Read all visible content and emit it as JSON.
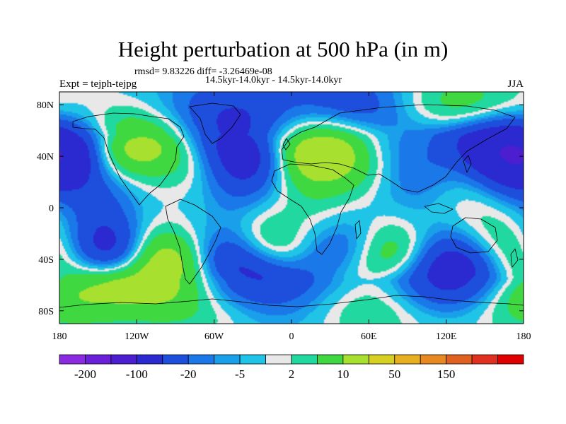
{
  "title": "Height perturbation at 500 hPa (in m)",
  "stats_line": "rmsd= 9.83226 diff= -3.26469e-08",
  "period_line": "14.5kyr-14.0kyr - 14.5kyr-14.0kyr",
  "experiment": "Expt = tejph-tejpg",
  "season": "JJA",
  "x_ticks": [
    {
      "lon": -180,
      "label": "180"
    },
    {
      "lon": -120,
      "label": "120W"
    },
    {
      "lon": -60,
      "label": "60W"
    },
    {
      "lon": 0,
      "label": "0"
    },
    {
      "lon": 60,
      "label": "60E"
    },
    {
      "lon": 120,
      "label": "120E"
    },
    {
      "lon": 180,
      "label": "180"
    }
  ],
  "y_ticks": [
    {
      "lat": 80,
      "label": "80N"
    },
    {
      "lat": 40,
      "label": "40N"
    },
    {
      "lat": 0,
      "label": "0"
    },
    {
      "lat": -40,
      "label": "40S"
    },
    {
      "lat": -80,
      "label": "80S"
    }
  ],
  "colorbar": {
    "colors": [
      "#8a2be2",
      "#6a1fd8",
      "#4b1fcf",
      "#2a2ad0",
      "#1e4fdc",
      "#1a78e8",
      "#1aa0ea",
      "#20c4e6",
      "#e8e8e8",
      "#20d8a0",
      "#40d840",
      "#a8e030",
      "#d8d020",
      "#e8b020",
      "#e88820",
      "#e06020",
      "#e03020",
      "#e00000"
    ],
    "labels": [
      {
        "boundary": 1,
        "text": "-200"
      },
      {
        "boundary": 3,
        "text": "-100"
      },
      {
        "boundary": 5,
        "text": "-20"
      },
      {
        "boundary": 7,
        "text": "-5"
      },
      {
        "boundary": 9,
        "text": "2"
      },
      {
        "boundary": 11,
        "text": "10"
      },
      {
        "boundary": 13,
        "text": "50"
      },
      {
        "boundary": 15,
        "text": "150"
      }
    ]
  },
  "anomaly_centers": [
    {
      "lon": -178,
      "lat": 42,
      "value": -30
    },
    {
      "lon": -130,
      "lat": 50,
      "value": 35
    },
    {
      "lon": -140,
      "lat": 30,
      "value": -8
    },
    {
      "lon": -100,
      "lat": 60,
      "value": -10
    },
    {
      "lon": -90,
      "lat": 45,
      "value": 15
    },
    {
      "lon": -35,
      "lat": 45,
      "value": -30
    },
    {
      "lon": -45,
      "lat": 75,
      "value": -15
    },
    {
      "lon": 15,
      "lat": 48,
      "value": 35
    },
    {
      "lon": 50,
      "lat": 38,
      "value": 15
    },
    {
      "lon": 70,
      "lat": 62,
      "value": -15
    },
    {
      "lon": 40,
      "lat": 80,
      "value": -15
    },
    {
      "lon": 110,
      "lat": 70,
      "value": 15
    },
    {
      "lon": 115,
      "lat": 48,
      "value": -10
    },
    {
      "lon": 165,
      "lat": 45,
      "value": -30
    },
    {
      "lon": 145,
      "lat": 75,
      "value": 12
    },
    {
      "lon": 90,
      "lat": 20,
      "value": -6
    },
    {
      "lon": -150,
      "lat": 5,
      "value": -8
    },
    {
      "lon": -40,
      "lat": 15,
      "value": -6
    },
    {
      "lon": 20,
      "lat": 5,
      "value": 5
    },
    {
      "lon": 140,
      "lat": 0,
      "value": 5
    },
    {
      "lon": -145,
      "lat": -38,
      "value": -35
    },
    {
      "lon": -165,
      "lat": -55,
      "value": 25
    },
    {
      "lon": -100,
      "lat": -50,
      "value": 40
    },
    {
      "lon": -45,
      "lat": -50,
      "value": -35
    },
    {
      "lon": -20,
      "lat": -30,
      "value": 15
    },
    {
      "lon": 20,
      "lat": -55,
      "value": -8
    },
    {
      "lon": 45,
      "lat": -35,
      "value": -12
    },
    {
      "lon": 75,
      "lat": -40,
      "value": 20
    },
    {
      "lon": 125,
      "lat": -52,
      "value": -40
    },
    {
      "lon": 160,
      "lat": -30,
      "value": 8
    },
    {
      "lon": -60,
      "lat": -78,
      "value": 10
    },
    {
      "lon": 60,
      "lat": -78,
      "value": 12
    },
    {
      "lon": 170,
      "lat": -72,
      "value": 10
    },
    {
      "lon": -10,
      "lat": -85,
      "value": -4
    }
  ]
}
